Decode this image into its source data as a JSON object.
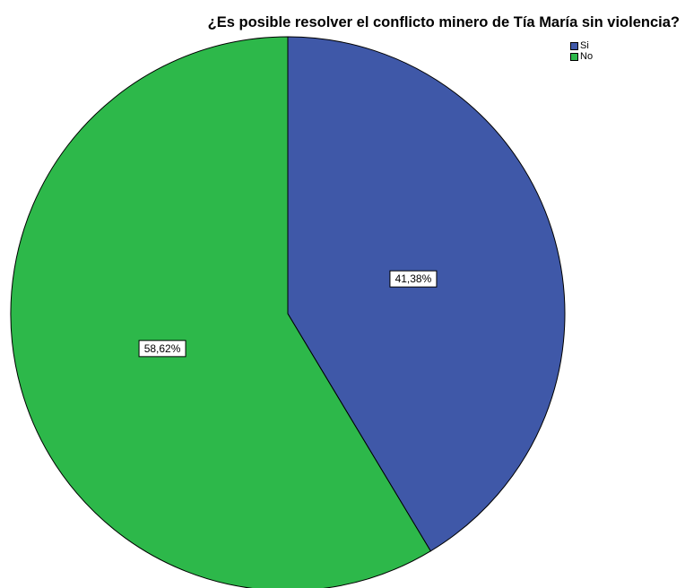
{
  "chart_data": {
    "type": "pie",
    "title": "¿Es posible resolver el conflicto minero de Tía María sin violencia?",
    "slices": [
      {
        "name": "Si",
        "value": 41.38,
        "label": "41,38%",
        "color": "#3f58a8"
      },
      {
        "name": "No",
        "value": 58.62,
        "label": "58,62%",
        "color": "#2db84a"
      }
    ],
    "legend_position": "top-right"
  }
}
